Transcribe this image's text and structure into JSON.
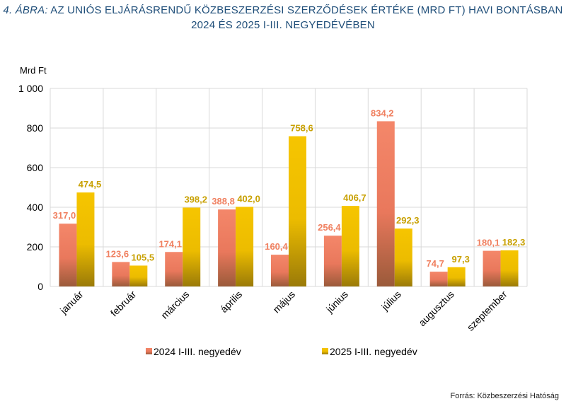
{
  "title_prefix": "4. ÁBRA:",
  "title_line1": "AZ UNIÓS ELJÁRÁSRENDŰ KÖZBESZERZÉSI SZERZŐDÉSEK ÉRTÉKE (MRD FT) HAVI BONTÁSBAN",
  "title_line2": "2024 ÉS 2025 I-III. NEGYEDÉVÉBEN",
  "source": "Forrás: Közbeszerzési Hatóság",
  "colors": {
    "s2024": "#f08060",
    "s2025": "#f0c000",
    "label2024": "#f08060",
    "label2025": "#c8a000"
  },
  "chart_data": {
    "type": "bar",
    "ylabel": "Mrd Ft",
    "ylim": [
      0,
      1000
    ],
    "yticks": [
      0,
      200,
      400,
      600,
      800,
      1000
    ],
    "ytick_labels": [
      "0",
      "200",
      "400",
      "600",
      "800",
      "1 000"
    ],
    "grid": true,
    "legend": "bottom",
    "categories": [
      "január",
      "február",
      "március",
      "április",
      "május",
      "június",
      "július",
      "augusztus",
      "szeptember"
    ],
    "series": [
      {
        "name": "2024 I-III. negyedév",
        "values": [
          317.0,
          123.6,
          174.1,
          388.8,
          160.4,
          256.4,
          834.2,
          74.7,
          180.1
        ],
        "labels": [
          "317,0",
          "123,6",
          "174,1",
          "388,8",
          "160,4",
          "256,4",
          "834,2",
          "74,7",
          "180,1"
        ]
      },
      {
        "name": "2025 I-III. negyedév",
        "values": [
          474.5,
          105.5,
          398.2,
          402.0,
          758.6,
          406.7,
          292.3,
          97.3,
          182.3
        ],
        "labels": [
          "474,5",
          "105,5",
          "398,2",
          "402,0",
          "758,6",
          "406,7",
          "292,3",
          "97,3",
          "182,3"
        ]
      }
    ]
  }
}
